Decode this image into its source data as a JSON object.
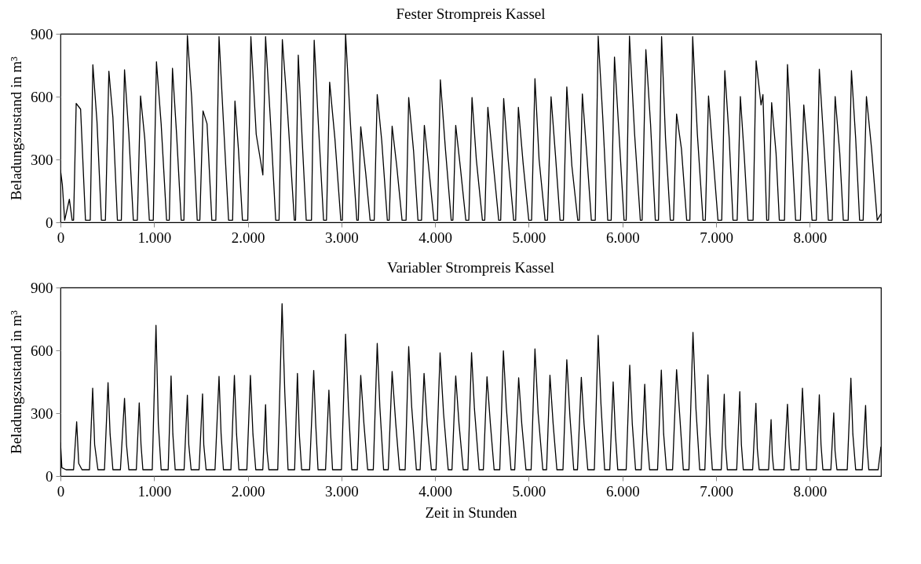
{
  "chart_data": [
    {
      "type": "line",
      "title": "Fester Strompreis Kassel",
      "ylabel": "Beladungszustand in m³",
      "xlim": [
        0,
        8760
      ],
      "ylim": [
        0,
        900
      ],
      "xticks": [
        0,
        {
          "value": 1000,
          "label": "1.000"
        },
        {
          "value": 2000,
          "label": "2.000"
        },
        {
          "value": 3000,
          "label": "3.000"
        },
        {
          "value": 4000,
          "label": "4.000"
        },
        {
          "value": 5000,
          "label": "5.000"
        },
        {
          "value": 6000,
          "label": "6.000"
        },
        {
          "value": 7000,
          "label": "7.000"
        },
        {
          "value": 8000,
          "label": "8.000"
        }
      ],
      "yticks": [
        0,
        300,
        600,
        900
      ],
      "grid": false,
      "series": [
        {
          "color": "#000000",
          "x": [
            0,
            20,
            45,
            95,
            125,
            140,
            168,
            215,
            267,
            318,
            346,
            390,
            437,
            480,
            517,
            560,
            608,
            650,
            684,
            730,
            778,
            821,
            855,
            900,
            949,
            991,
            1025,
            1075,
            1133,
            1162,
            1196,
            1240,
            1289,
            1318,
            1355,
            1400,
            1460,
            1488,
            1522,
            1565,
            1616,
            1659,
            1693,
            1740,
            1795,
            1838,
            1863,
            1900,
            1943,
            2000,
            2033,
            2090,
            2161,
            2190,
            2240,
            2298,
            2334,
            2369,
            2420,
            2497,
            2510,
            2539,
            2580,
            2624,
            2680,
            2709,
            2750,
            2809,
            2840,
            2874,
            2930,
            2993,
            3010,
            3044,
            3100,
            3164,
            3180,
            3206,
            3260,
            3306,
            3350,
            3382,
            3430,
            3490,
            3510,
            3541,
            3590,
            3647,
            3690,
            3718,
            3770,
            3817,
            3855,
            3885,
            3930,
            3987,
            4025,
            4056,
            4110,
            4172,
            4190,
            4220,
            4270,
            4328,
            4360,
            4394,
            4440,
            4505,
            4530,
            4563,
            4610,
            4679,
            4700,
            4732,
            4780,
            4839,
            4860,
            4889,
            4940,
            5000,
            5030,
            5066,
            5110,
            5174,
            5200,
            5238,
            5285,
            5334,
            5370,
            5406,
            5460,
            5523,
            5540,
            5572,
            5620,
            5668,
            5710,
            5741,
            5790,
            5843,
            5880,
            5915,
            5960,
            6017,
            6040,
            6075,
            6130,
            6191,
            6210,
            6250,
            6300,
            6351,
            6385,
            6418,
            6460,
            6511,
            6545,
            6578,
            6630,
            6686,
            6720,
            6750,
            6800,
            6860,
            6885,
            6919,
            6970,
            7020,
            7060,
            7093,
            7140,
            7180,
            7225,
            7259,
            7300,
            7340,
            7395,
            7427,
            7480,
            7500,
            7540,
            7560,
            7593,
            7640,
            7675,
            7730,
            7762,
            7810,
            7849,
            7900,
            7936,
            7980,
            8024,
            8070,
            8102,
            8150,
            8198,
            8240,
            8271,
            8320,
            8358,
            8410,
            8445,
            8490,
            8532,
            8570,
            8605,
            8660,
            8720,
            8760
          ],
          "values": [
            250,
            180,
            10,
            110,
            10,
            10,
            568,
            540,
            10,
            10,
            752,
            480,
            10,
            10,
            721,
            500,
            10,
            10,
            728,
            420,
            10,
            10,
            603,
            400,
            10,
            10,
            766,
            470,
            10,
            10,
            735,
            420,
            10,
            10,
            892,
            600,
            10,
            10,
            532,
            470,
            10,
            10,
            886,
            480,
            10,
            10,
            579,
            350,
            10,
            10,
            886,
            420,
            226,
            886,
            500,
            10,
            10,
            872,
            560,
            10,
            10,
            798,
            400,
            10,
            10,
            869,
            500,
            10,
            10,
            669,
            400,
            10,
            10,
            900,
            440,
            10,
            10,
            456,
            230,
            10,
            10,
            610,
            390,
            10,
            10,
            459,
            270,
            10,
            10,
            596,
            340,
            10,
            10,
            463,
            270,
            10,
            10,
            680,
            350,
            10,
            10,
            463,
            260,
            10,
            10,
            596,
            300,
            10,
            10,
            549,
            330,
            10,
            10,
            591,
            300,
            10,
            10,
            549,
            280,
            10,
            10,
            686,
            300,
            10,
            10,
            599,
            320,
            10,
            10,
            646,
            270,
            10,
            10,
            613,
            320,
            10,
            10,
            889,
            500,
            10,
            10,
            789,
            450,
            10,
            10,
            889,
            420,
            10,
            10,
            824,
            470,
            10,
            10,
            886,
            400,
            10,
            10,
            517,
            350,
            10,
            10,
            886,
            420,
            10,
            10,
            603,
            300,
            10,
            10,
            724,
            400,
            10,
            10,
            600,
            320,
            10,
            10,
            771,
            560,
            610,
            10,
            10,
            571,
            330,
            10,
            10,
            753,
            350,
            10,
            10,
            560,
            320,
            10,
            10,
            731,
            380,
            10,
            10,
            600,
            330,
            10,
            10,
            724,
            400,
            10,
            10,
            600,
            350,
            10,
            40
          ]
        }
      ]
    },
    {
      "type": "line",
      "title": "Variabler Strompreis Kassel",
      "xlabel": "Zeit in Stunden",
      "ylabel": "Beladungszustand in m³",
      "xlim": [
        0,
        8760
      ],
      "ylim": [
        0,
        900
      ],
      "xticks": [
        0,
        {
          "value": 1000,
          "label": "1.000"
        },
        {
          "value": 2000,
          "label": "2.000"
        },
        {
          "value": 3000,
          "label": "3.000"
        },
        {
          "value": 4000,
          "label": "4.000"
        },
        {
          "value": 5000,
          "label": "5.000"
        },
        {
          "value": 6000,
          "label": "6.000"
        },
        {
          "value": 7000,
          "label": "7.000"
        },
        {
          "value": 8000,
          "label": "8.000"
        }
      ],
      "yticks": [
        0,
        300,
        600,
        900
      ],
      "grid": false,
      "series": [
        {
          "color": "#000000",
          "x": [
            0,
            15,
            60,
            140,
            173,
            195,
            230,
            310,
            344,
            365,
            400,
            470,
            508,
            530,
            560,
            640,
            684,
            705,
            730,
            810,
            841,
            860,
            880,
            980,
            1020,
            1045,
            1075,
            1150,
            1181,
            1200,
            1225,
            1320,
            1355,
            1370,
            1395,
            1480,
            1517,
            1530,
            1555,
            1650,
            1693,
            1715,
            1740,
            1820,
            1857,
            1880,
            1905,
            1990,
            2028,
            2055,
            2085,
            2160,
            2190,
            2205,
            2225,
            2320,
            2366,
            2395,
            2430,
            2500,
            2530,
            2550,
            2575,
            2660,
            2704,
            2725,
            2750,
            2830,
            2866,
            2885,
            2905,
            3000,
            3044,
            3075,
            3110,
            3170,
            3206,
            3240,
            3280,
            3340,
            3382,
            3410,
            3450,
            3500,
            3541,
            3580,
            3620,
            3680,
            3718,
            3750,
            3800,
            3840,
            3882,
            3915,
            3960,
            4010,
            4053,
            4090,
            4140,
            4180,
            4220,
            4255,
            4300,
            4350,
            4389,
            4420,
            4470,
            4515,
            4554,
            4590,
            4630,
            4690,
            4729,
            4760,
            4810,
            4850,
            4892,
            4925,
            4970,
            5025,
            5066,
            5100,
            5150,
            5190,
            5226,
            5260,
            5300,
            5365,
            5406,
            5440,
            5480,
            5520,
            5561,
            5590,
            5630,
            5700,
            5741,
            5770,
            5810,
            5865,
            5901,
            5925,
            5950,
            6040,
            6078,
            6105,
            6140,
            6200,
            6238,
            6260,
            6290,
            6375,
            6415,
            6440,
            6470,
            6535,
            6578,
            6610,
            6650,
            6710,
            6753,
            6785,
            6825,
            6880,
            6913,
            6935,
            6960,
            7055,
            7087,
            7100,
            7120,
            7220,
            7253,
            7270,
            7290,
            7390,
            7425,
            7440,
            7460,
            7560,
            7587,
            7600,
            7615,
            7725,
            7762,
            7780,
            7800,
            7885,
            7922,
            7945,
            7965,
            8070,
            8102,
            8120,
            8140,
            8225,
            8256,
            8270,
            8290,
            8400,
            8439,
            8460,
            8490,
            8560,
            8596,
            8610,
            8630,
            8730,
            8760
          ],
          "values": [
            160,
            40,
            30,
            30,
            259,
            60,
            30,
            30,
            419,
            150,
            30,
            30,
            446,
            200,
            30,
            30,
            371,
            150,
            30,
            30,
            349,
            150,
            30,
            30,
            719,
            250,
            30,
            30,
            478,
            200,
            30,
            30,
            386,
            150,
            30,
            30,
            392,
            150,
            30,
            30,
            476,
            200,
            30,
            30,
            480,
            200,
            30,
            30,
            480,
            200,
            30,
            30,
            341,
            120,
            30,
            30,
            823,
            400,
            30,
            30,
            490,
            200,
            30,
            30,
            504,
            250,
            30,
            30,
            410,
            200,
            30,
            30,
            677,
            330,
            30,
            30,
            480,
            250,
            30,
            30,
            633,
            330,
            30,
            30,
            499,
            250,
            30,
            30,
            618,
            330,
            30,
            30,
            490,
            250,
            30,
            30,
            588,
            300,
            30,
            30,
            478,
            250,
            30,
            30,
            589,
            320,
            30,
            30,
            474,
            250,
            30,
            30,
            598,
            330,
            30,
            30,
            469,
            250,
            30,
            30,
            607,
            300,
            30,
            30,
            481,
            250,
            30,
            30,
            555,
            280,
            30,
            30,
            471,
            250,
            30,
            30,
            672,
            350,
            30,
            30,
            449,
            200,
            30,
            30,
            529,
            250,
            30,
            30,
            438,
            200,
            30,
            30,
            506,
            200,
            30,
            30,
            508,
            300,
            30,
            30,
            686,
            320,
            30,
            30,
            483,
            200,
            30,
            30,
            390,
            150,
            30,
            30,
            403,
            150,
            30,
            30,
            347,
            130,
            30,
            30,
            269,
            100,
            30,
            30,
            343,
            150,
            30,
            30,
            419,
            200,
            30,
            30,
            388,
            150,
            30,
            30,
            301,
            120,
            30,
            30,
            467,
            200,
            30,
            30,
            337,
            150,
            30,
            30,
            140
          ]
        }
      ]
    }
  ]
}
